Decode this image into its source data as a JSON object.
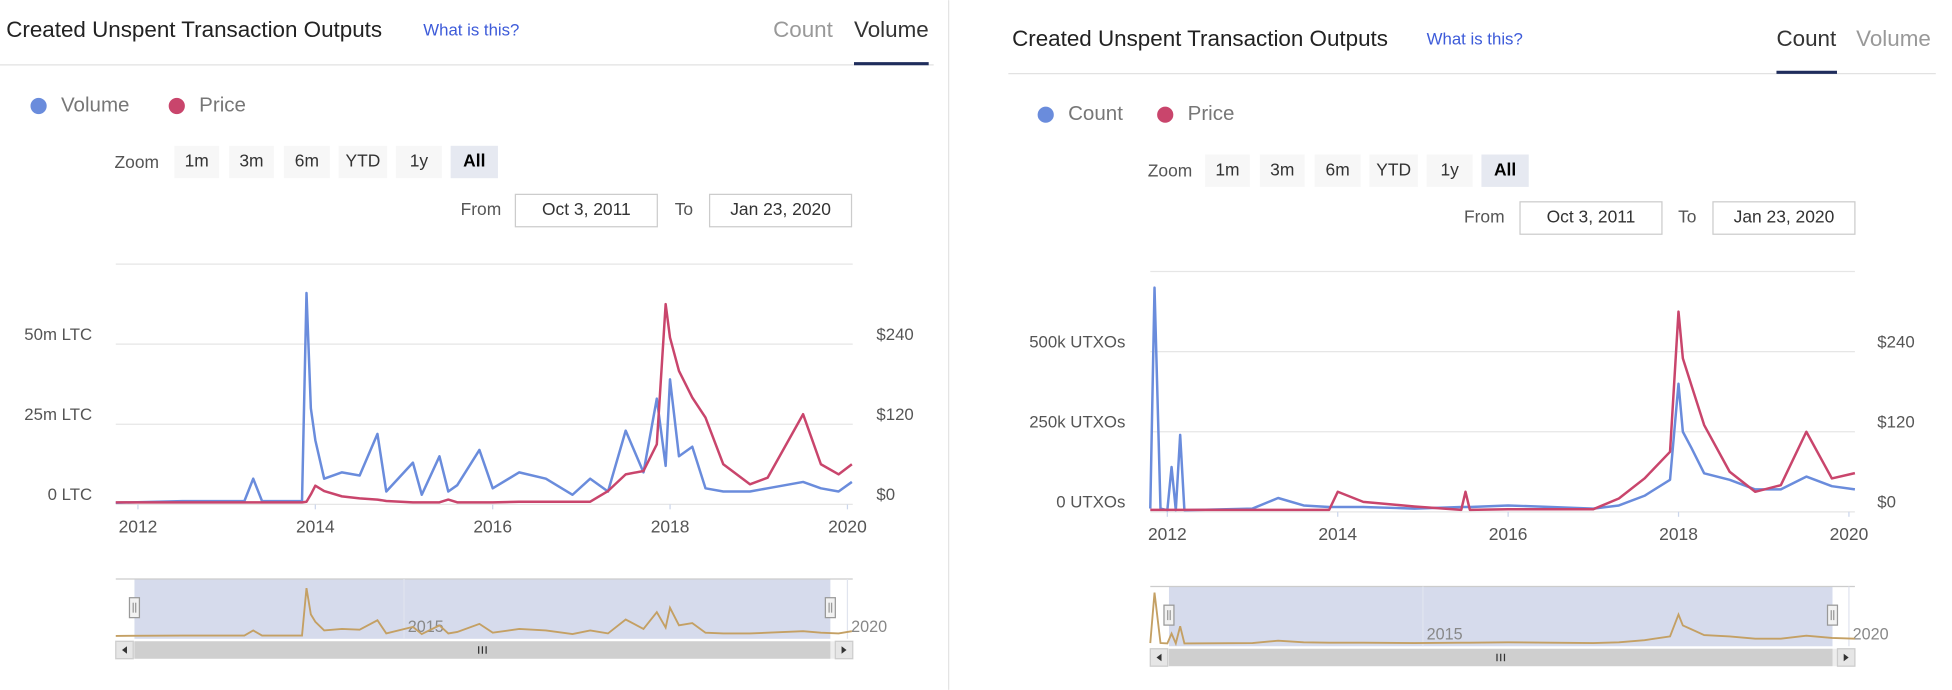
{
  "chart_data": [
    {
      "type": "line",
      "title": "Created Unspent Transaction Outputs",
      "help_link": "What is this?",
      "tabs": [
        "Count",
        "Volume"
      ],
      "active_tab": 1,
      "zoom_label": "Zoom",
      "zoom_buttons": [
        "1m",
        "3m",
        "6m",
        "YTD",
        "1y",
        "All"
      ],
      "active_zoom": 5,
      "from_label": "From",
      "from_date": "Oct 3, 2011",
      "to_label": "To",
      "to_date": "Jan 23, 2020",
      "x": [
        2011.75,
        2012.5,
        2013.2,
        2013.3,
        2013.4,
        2013.85,
        2013.9,
        2013.95,
        2014.0,
        2014.1,
        2014.3,
        2014.5,
        2014.7,
        2014.8,
        2015.1,
        2015.2,
        2015.4,
        2015.5,
        2015.6,
        2015.85,
        2016.0,
        2016.3,
        2016.6,
        2016.9,
        2017.1,
        2017.3,
        2017.5,
        2017.7,
        2017.85,
        2017.95,
        2018.0,
        2018.1,
        2018.25,
        2018.4,
        2018.6,
        2018.9,
        2019.1,
        2019.5,
        2019.7,
        2019.9,
        2020.05
      ],
      "xlim": [
        2011.75,
        2020.06
      ],
      "xticks": [
        2012,
        2014,
        2016,
        2018,
        2020
      ],
      "ylim": [
        0,
        75000000
      ],
      "yticks": [
        {
          "value": 0,
          "label": "0 LTC"
        },
        {
          "value": 25000000,
          "label": "25m LTC"
        },
        {
          "value": 50000000,
          "label": "50m LTC"
        }
      ],
      "y2lim": [
        0,
        360
      ],
      "y2ticks": [
        {
          "value": 0,
          "label": "$0"
        },
        {
          "value": 120,
          "label": "$120"
        },
        {
          "value": 240,
          "label": "$240"
        }
      ],
      "grid": true,
      "series": [
        {
          "name": "Volume",
          "color": "#6a8cdc",
          "values": [
            500000,
            1000000,
            1000000,
            8000000,
            1000000,
            1000000,
            66000000,
            30000000,
            20000000,
            8000000,
            10000000,
            9000000,
            22000000,
            4000000,
            13000000,
            3000000,
            15000000,
            4000000,
            6000000,
            17000000,
            5000000,
            10000000,
            8000000,
            3000000,
            8000000,
            4000000,
            23000000,
            10000000,
            33000000,
            12000000,
            39000000,
            15000000,
            18000000,
            5000000,
            4000000,
            4000000,
            5000000,
            7000000,
            5000000,
            4000000,
            7000000
          ]
        },
        {
          "name": "Price",
          "color": "#c9456c",
          "axis": "y2",
          "values": [
            3,
            3,
            3,
            3,
            3,
            3,
            4,
            15,
            28,
            20,
            12,
            9,
            7,
            5,
            3,
            3,
            3,
            7,
            3,
            3,
            3,
            4,
            4,
            4,
            4,
            20,
            45,
            50,
            90,
            300,
            250,
            200,
            160,
            130,
            60,
            30,
            40,
            135,
            60,
            45,
            60
          ]
        }
      ],
      "navigator": {
        "series": 0,
        "color": "#c4a064",
        "xticks": [
          2015,
          2020
        ]
      }
    },
    {
      "type": "line",
      "title": "Created Unspent Transaction Outputs",
      "help_link": "What is this?",
      "tabs": [
        "Count",
        "Volume"
      ],
      "active_tab": 0,
      "zoom_label": "Zoom",
      "zoom_buttons": [
        "1m",
        "3m",
        "6m",
        "YTD",
        "1y",
        "All"
      ],
      "active_zoom": 5,
      "from_label": "From",
      "from_date": "Oct 3, 2011",
      "to_label": "To",
      "to_date": "Jan 23, 2020",
      "x": [
        2011.8,
        2011.85,
        2011.92,
        2012.0,
        2012.05,
        2012.1,
        2012.15,
        2012.2,
        2013.0,
        2013.3,
        2013.6,
        2013.9,
        2014.0,
        2014.3,
        2014.9,
        2015.45,
        2015.5,
        2015.55,
        2016.0,
        2016.5,
        2017.0,
        2017.3,
        2017.6,
        2017.9,
        2018.0,
        2018.05,
        2018.15,
        2018.3,
        2018.6,
        2018.9,
        2019.2,
        2019.5,
        2019.8,
        2020.07
      ],
      "xlim": [
        2011.8,
        2020.07
      ],
      "xticks": [
        2012,
        2014,
        2016,
        2018,
        2020
      ],
      "ylim": [
        0,
        750000
      ],
      "yticks": [
        {
          "value": 0,
          "label": "0 UTXOs"
        },
        {
          "value": 250000,
          "label": "250k UTXOs"
        },
        {
          "value": 500000,
          "label": "500k UTXOs"
        }
      ],
      "y2lim": [
        0,
        360
      ],
      "y2ticks": [
        {
          "value": 0,
          "label": "$0"
        },
        {
          "value": 120,
          "label": "$120"
        },
        {
          "value": 240,
          "label": "$240"
        }
      ],
      "grid": true,
      "series": [
        {
          "name": "Count",
          "color": "#6a8cdc",
          "values": [
            10000,
            700000,
            10000,
            5000,
            140000,
            5000,
            240000,
            5000,
            10000,
            43000,
            20000,
            15000,
            15000,
            15000,
            10000,
            15000,
            15000,
            15000,
            20000,
            15000,
            10000,
            20000,
            50000,
            100000,
            400000,
            250000,
            200000,
            120000,
            100000,
            70000,
            70000,
            110000,
            80000,
            70000
          ]
        },
        {
          "name": "Price",
          "color": "#c9456c",
          "axis": "y2",
          "values": [
            3,
            3,
            3,
            3,
            3,
            3,
            3,
            3,
            3,
            3,
            3,
            3,
            30,
            15,
            8,
            3,
            30,
            3,
            4,
            4,
            4,
            20,
            50,
            90,
            300,
            230,
            190,
            130,
            60,
            30,
            40,
            120,
            50,
            58
          ]
        }
      ],
      "navigator": {
        "series": 0,
        "color": "#c4a064",
        "xticks": [
          2015,
          2020
        ]
      }
    }
  ]
}
